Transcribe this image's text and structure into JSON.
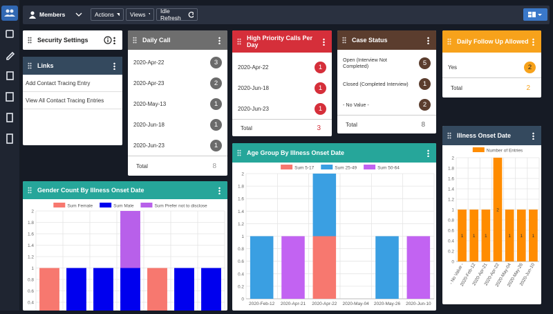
{
  "toolbar": {
    "members": "Members",
    "actions": "Actions",
    "views": "Views",
    "idle_refresh": "Idle Refresh"
  },
  "security_settings": {
    "title": "Security Settings"
  },
  "links": {
    "title": "Links",
    "items": [
      "Add Contact Tracing Entry",
      "View All Contact Tracing Entries"
    ]
  },
  "daily_call": {
    "title": "Daily Call",
    "rows": [
      {
        "label": "2020-Apr-22",
        "count": 3
      },
      {
        "label": "2020-Apr-23",
        "count": 2
      },
      {
        "label": "2020-May-13",
        "count": 1
      },
      {
        "label": "2020-Jun-18",
        "count": 1
      },
      {
        "label": "2020-Jun-23",
        "count": 1
      }
    ],
    "total_label": "Total",
    "total": 8
  },
  "high_priority": {
    "title": "High Priority Calls Per Day",
    "rows": [
      {
        "label": "2020-Apr-22",
        "count": 1
      },
      {
        "label": "2020-Jun-18",
        "count": 1
      },
      {
        "label": "2020-Jun-23",
        "count": 1
      }
    ],
    "total_label": "Total",
    "total": 3
  },
  "case_status": {
    "title": "Case Status",
    "rows": [
      {
        "label": "Open (Interview Not Completed)",
        "count": 5
      },
      {
        "label": "Closed (Completed Interview)",
        "count": 1
      },
      {
        "label": "- No Value -",
        "count": 2
      }
    ],
    "total_label": "Total",
    "total": 8
  },
  "daily_follow_up": {
    "title": "Daily Follow Up Allowed",
    "rows": [
      {
        "label": "Yes",
        "count": 2
      }
    ],
    "total_label": "Total",
    "total": 2
  },
  "chart_data": [
    {
      "type": "bar",
      "title": "Illness Onset Date",
      "categories": [
        "- No Value -",
        "2020-Feb-12",
        "2020-Apr-21",
        "2020-Apr-22",
        "2020-May-04",
        "2020-May-26",
        "2020-Jun-10"
      ],
      "series": [
        {
          "name": "Number of Entries",
          "color": "#ff8c00",
          "values": [
            1,
            1,
            1,
            2,
            1,
            1,
            1
          ]
        }
      ],
      "ylim": [
        0,
        2
      ],
      "yticks": [
        0,
        0.2,
        0.4,
        0.6,
        0.8,
        1,
        1.2,
        1.4,
        1.6,
        1.8,
        2
      ],
      "grid": true,
      "stacked": true,
      "data_labels": true,
      "legend": "top"
    },
    {
      "type": "bar",
      "title": "Age Group By Illness Onset Date",
      "categories": [
        "2020-Feb-12",
        "2020-Apr-21",
        "2020-Apr-22",
        "2020-May-04",
        "2020-May-26",
        "2020-Jun-10"
      ],
      "series": [
        {
          "name": "Sum 5-17",
          "color": "#f7786f",
          "values": [
            0,
            0,
            1,
            0,
            0,
            0
          ]
        },
        {
          "name": "Sum 25-49",
          "color": "#3a9fe2",
          "values": [
            1,
            0,
            1,
            0,
            1,
            0
          ]
        },
        {
          "name": "Sum 50-64",
          "color": "#c263f2",
          "values": [
            0,
            1,
            0,
            0,
            0,
            1
          ]
        }
      ],
      "ylim": [
        0,
        2
      ],
      "yticks": [
        0,
        0.2,
        0.4,
        0.6,
        0.8,
        1,
        1.2,
        1.4,
        1.6,
        1.8,
        2
      ],
      "grid": true,
      "stacked": true,
      "data_labels": false,
      "legend": "top"
    },
    {
      "type": "bar",
      "title": "Gender Count By Illness Onset Date",
      "categories": [
        null,
        null,
        null,
        null,
        null,
        null,
        null
      ],
      "series": [
        {
          "name": "Sum Female",
          "color": "#f7786f",
          "values": [
            1,
            0,
            0,
            0,
            1,
            0,
            0
          ]
        },
        {
          "name": "Sum Male",
          "color": "#0000ee",
          "values": [
            0,
            1,
            1,
            1,
            0,
            1,
            1
          ]
        },
        {
          "name": "Sum Prefer not to disclose",
          "color": "#b860ea",
          "values": [
            0,
            0,
            0,
            1,
            0,
            0,
            0
          ]
        }
      ],
      "ylim": [
        0,
        2
      ],
      "yticks": [
        0.4,
        0.6,
        0.8,
        1,
        1.2,
        1.4,
        1.6,
        1.8,
        2
      ],
      "grid": true,
      "stacked": true,
      "data_labels": false,
      "legend": "top"
    }
  ]
}
